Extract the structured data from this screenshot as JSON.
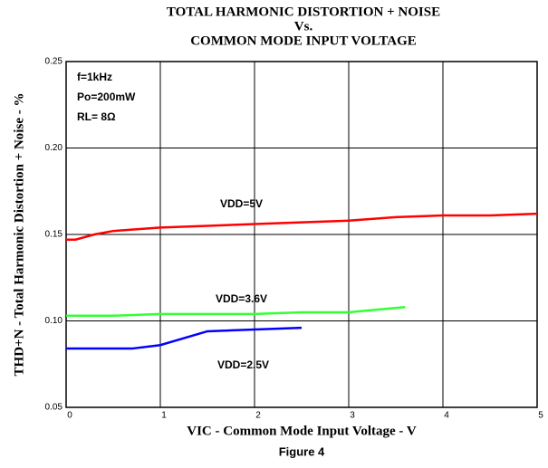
{
  "chart_data": {
    "type": "line",
    "title": [
      "TOTAL HARMONIC DISTORTION + NOISE",
      "Vs.",
      "COMMON MODE INPUT VOLTAGE"
    ],
    "x_label": "VIC - Common Mode Input Voltage - V",
    "y_label": "THD+N - Total Harmonic Distortion + Noise - %",
    "caption": "Figure 4",
    "annotations": [
      "f=1kHz",
      "Po=200mW",
      "RL= 8Ω"
    ],
    "xlim": [
      0,
      5
    ],
    "xticks": [
      0,
      1,
      2,
      3,
      4,
      5
    ],
    "ylim": [
      0.05,
      0.25
    ],
    "yticks": [
      {
        "value": 0.05,
        "label": "0.05"
      },
      {
        "value": 0.1,
        "label": "0.10"
      },
      0.15,
      {
        "value": 0.2,
        "label": "0.20"
      },
      0.25
    ],
    "grid": true,
    "series": [
      {
        "name": "VDD=5V",
        "color": "#ff0000",
        "x": [
          0,
          0.1,
          0.3,
          0.5,
          1,
          1.5,
          2,
          2.5,
          3,
          3.5,
          4,
          4.5,
          5
        ],
        "values": [
          0.147,
          0.147,
          0.15,
          0.152,
          0.154,
          0.155,
          0.156,
          0.157,
          0.158,
          0.16,
          0.161,
          0.161,
          0.162
        ]
      },
      {
        "name": "VDD=3.6V",
        "color": "#33ff33",
        "x": [
          0,
          0.5,
          1,
          1.5,
          2,
          2.5,
          3,
          3.2,
          3.6
        ],
        "values": [
          0.103,
          0.103,
          0.104,
          0.104,
          0.104,
          0.105,
          0.105,
          0.106,
          0.108
        ]
      },
      {
        "name": "VDD=2.5V",
        "color": "#0000ff",
        "x": [
          0,
          0.7,
          1,
          1.5,
          2,
          2.5
        ],
        "values": [
          0.084,
          0.084,
          0.086,
          0.094,
          0.095,
          0.096
        ]
      }
    ]
  }
}
